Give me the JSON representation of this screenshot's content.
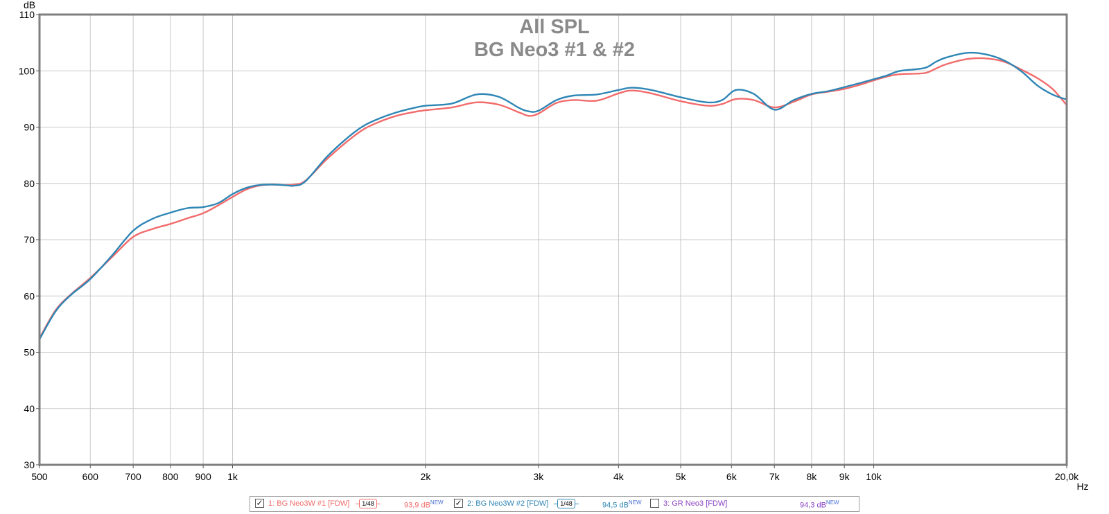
{
  "chart_data": {
    "type": "line",
    "title": "All SPL",
    "subtitle": "BG Neo3 #1 & #2",
    "ylabel": "dB",
    "xunit": "Hz",
    "xscale": "log",
    "xlim": [
      500,
      20000
    ],
    "ylim": [
      30,
      110
    ],
    "grid": true,
    "xticks": [
      500,
      600,
      700,
      800,
      900,
      1000,
      2000,
      3000,
      4000,
      5000,
      6000,
      7000,
      8000,
      9000,
      10000,
      20000
    ],
    "xtick_labels": [
      "500",
      "600",
      "700",
      "800",
      "900",
      "1k",
      "2k",
      "3k",
      "4k",
      "5k",
      "6k",
      "7k",
      "8k",
      "9k",
      "10k",
      "20,0k"
    ],
    "yticks": [
      30,
      40,
      50,
      60,
      70,
      80,
      90,
      100,
      110
    ],
    "series": [
      {
        "color": "#f26b6b",
        "x": [
          500,
          530,
          560,
          600,
          650,
          700,
          750,
          800,
          850,
          900,
          950,
          1000,
          1050,
          1100,
          1150,
          1200,
          1250,
          1300,
          1400,
          1500,
          1600,
          1700,
          1800,
          1900,
          2000,
          2200,
          2400,
          2600,
          2800,
          2900,
          3000,
          3200,
          3400,
          3700,
          4000,
          4200,
          4500,
          5000,
          5500,
          5800,
          6100,
          6500,
          7000,
          7500,
          8000,
          8500,
          9000,
          9500,
          10000,
          10500,
          11000,
          12000,
          12500,
          13000,
          14000,
          15000,
          16000,
          17000,
          18000,
          19000,
          20000
        ],
        "y": [
          52.5,
          57.5,
          60.3,
          63.2,
          67,
          70.5,
          71.9,
          72.8,
          73.8,
          74.7,
          76.1,
          77.6,
          78.9,
          79.6,
          79.8,
          79.7,
          79.8,
          80.5,
          84.2,
          87.2,
          89.6,
          91,
          92,
          92.6,
          93,
          93.5,
          94.4,
          94,
          92.6,
          92,
          92.4,
          94.3,
          94.8,
          94.7,
          96,
          96.5,
          96,
          94.6,
          93.8,
          94.1,
          95,
          94.8,
          93.5,
          94.5,
          95.8,
          96.3,
          96.8,
          97.5,
          98.3,
          99,
          99.4,
          99.6,
          100.4,
          101.2,
          102.1,
          102.2,
          101.6,
          100.2,
          98.7,
          96.8,
          93.9
        ]
      },
      {
        "color": "#2e86b5",
        "x": [
          500,
          530,
          560,
          600,
          650,
          700,
          750,
          800,
          850,
          900,
          950,
          1000,
          1050,
          1100,
          1150,
          1200,
          1250,
          1300,
          1400,
          1500,
          1600,
          1700,
          1800,
          1900,
          2000,
          2200,
          2400,
          2600,
          2800,
          2900,
          3000,
          3200,
          3400,
          3700,
          4000,
          4200,
          4500,
          5000,
          5500,
          5800,
          6100,
          6500,
          7000,
          7500,
          8000,
          8500,
          9000,
          9500,
          10000,
          10500,
          11000,
          12000,
          12500,
          13000,
          14000,
          15000,
          16000,
          17000,
          18000,
          19000,
          20000
        ],
        "y": [
          52.3,
          57.3,
          60.2,
          63,
          67.3,
          71.6,
          73.7,
          74.8,
          75.6,
          75.8,
          76.5,
          78.1,
          79.2,
          79.7,
          79.8,
          79.7,
          79.6,
          80.4,
          84.6,
          87.8,
          90.2,
          91.6,
          92.6,
          93.3,
          93.8,
          94.2,
          95.8,
          95.4,
          93.4,
          92.8,
          92.9,
          94.8,
          95.6,
          95.8,
          96.6,
          97,
          96.6,
          95.3,
          94.4,
          94.8,
          96.6,
          95.9,
          93.1,
          94.8,
          95.9,
          96.4,
          97.1,
          97.8,
          98.5,
          99.2,
          100,
          100.5,
          101.6,
          102.4,
          103.2,
          102.9,
          101.8,
          99.9,
          97.4,
          95.8,
          94.9
        ]
      }
    ]
  },
  "legend": {
    "items": [
      {
        "label": "1: BG Neo3W #1 [FDW]",
        "checked": true,
        "smoothing": "1/48",
        "level": "93,9 dB",
        "level_tag": "NEW",
        "color": "#f26b6b"
      },
      {
        "label": "2: BG Neo3W #2 [FDW]",
        "checked": true,
        "smoothing": "1/48",
        "level": "94,5 dB",
        "level_tag": "NEW",
        "color": "#2e86b5"
      },
      {
        "label": "3: GR Neo3 [FDW]",
        "checked": false,
        "level": "94,3 dB",
        "level_tag": "NEW",
        "color": "#8a3fc4"
      }
    ]
  }
}
